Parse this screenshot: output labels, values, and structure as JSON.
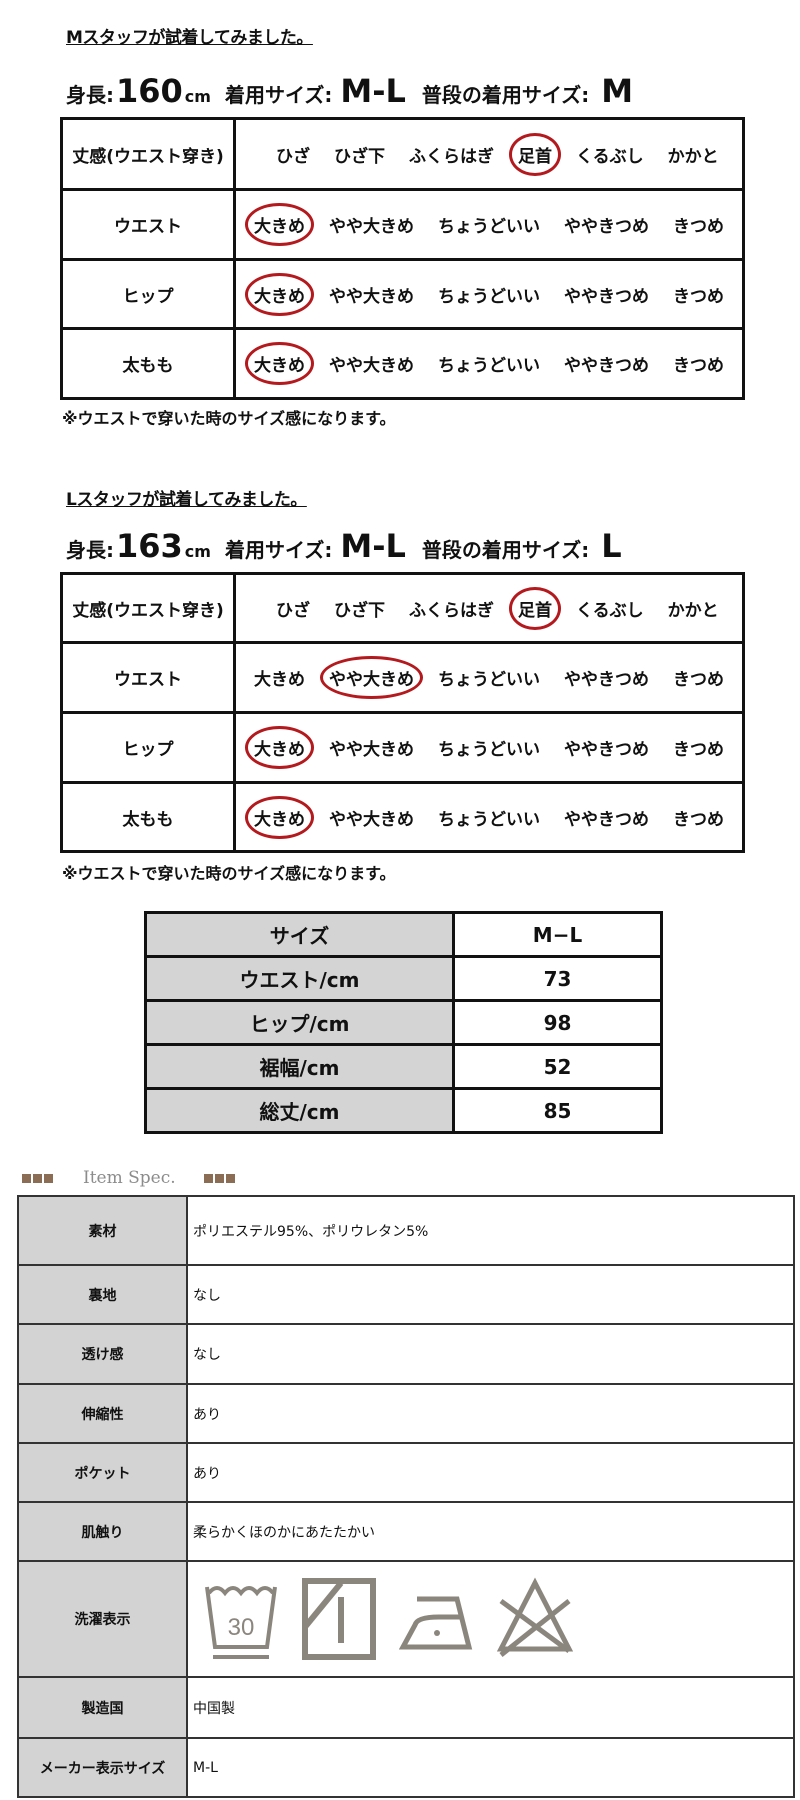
{
  "staff": [
    {
      "title": "Mスタッフが試着してみました。",
      "height_label": "身長:",
      "height_value": "160",
      "height_unit": "cm",
      "worn_size_label": "着用サイズ:",
      "worn_size": "M-L",
      "usual_size_label": "普段の着用サイズ:",
      "usual_size": "M",
      "rows": [
        {
          "label": "丈感(ウエスト穿き)",
          "options": [
            "ひざ",
            "ひざ下",
            "ふくらはぎ",
            "足首",
            "くるぶし",
            "かかと"
          ],
          "selected": 3
        },
        {
          "label": "ウエスト",
          "options": [
            "大きめ",
            "やや大きめ",
            "ちょうどいい",
            "ややきつめ",
            "きつめ"
          ],
          "selected": 0
        },
        {
          "label": "ヒップ",
          "options": [
            "大きめ",
            "やや大きめ",
            "ちょうどいい",
            "ややきつめ",
            "きつめ"
          ],
          "selected": 0
        },
        {
          "label": "太もも",
          "options": [
            "大きめ",
            "やや大きめ",
            "ちょうどいい",
            "ややきつめ",
            "きつめ"
          ],
          "selected": 0
        }
      ],
      "note": "※ウエストで穿いた時のサイズ感になります。"
    },
    {
      "title": "Lスタッフが試着してみました。",
      "height_label": "身長:",
      "height_value": "163",
      "height_unit": "cm",
      "worn_size_label": "着用サイズ:",
      "worn_size": "M-L",
      "usual_size_label": "普段の着用サイズ:",
      "usual_size": "L",
      "rows": [
        {
          "label": "丈感(ウエスト穿き)",
          "options": [
            "ひざ",
            "ひざ下",
            "ふくらはぎ",
            "足首",
            "くるぶし",
            "かかと"
          ],
          "selected": 3
        },
        {
          "label": "ウエスト",
          "options": [
            "大きめ",
            "やや大きめ",
            "ちょうどいい",
            "ややきつめ",
            "きつめ"
          ],
          "selected": 1
        },
        {
          "label": "ヒップ",
          "options": [
            "大きめ",
            "やや大きめ",
            "ちょうどいい",
            "ややきつめ",
            "きつめ"
          ],
          "selected": 0
        },
        {
          "label": "太もも",
          "options": [
            "大きめ",
            "やや大きめ",
            "ちょうどいい",
            "ややきつめ",
            "きつめ"
          ],
          "selected": 0
        }
      ],
      "note": "※ウエストで穿いた時のサイズ感になります。"
    }
  ],
  "size_table": {
    "header": [
      "サイズ",
      "M−L"
    ],
    "rows": [
      [
        "ウエスト/cm",
        "73"
      ],
      [
        "ヒップ/cm",
        "98"
      ],
      [
        "裾幅/cm",
        "52"
      ],
      [
        "総丈/cm",
        "85"
      ]
    ]
  },
  "spec": {
    "heading": "Item Spec.",
    "accent_color": "#8b6c55",
    "rows": [
      {
        "key": "素材",
        "value": "ポリエステル95%、ポリウレタン5%"
      },
      {
        "key": "裏地",
        "value": "なし"
      },
      {
        "key": "透け感",
        "value": "なし"
      },
      {
        "key": "伸縮性",
        "value": "あり"
      },
      {
        "key": "ポケット",
        "value": "あり"
      },
      {
        "key": "肌触り",
        "value": "柔らかくほのかにあたたかい"
      },
      {
        "key": "洗濯表示",
        "icons": [
          "wash-30-icon",
          "drip-dry-shade-icon",
          "iron-low-icon",
          "no-bleach-icon"
        ],
        "wash_temp": "30"
      },
      {
        "key": "製造国",
        "value": "中国製"
      },
      {
        "key": "メーカー表示サイズ",
        "value": "M-L"
      }
    ]
  },
  "circle_color": "#b3191d"
}
